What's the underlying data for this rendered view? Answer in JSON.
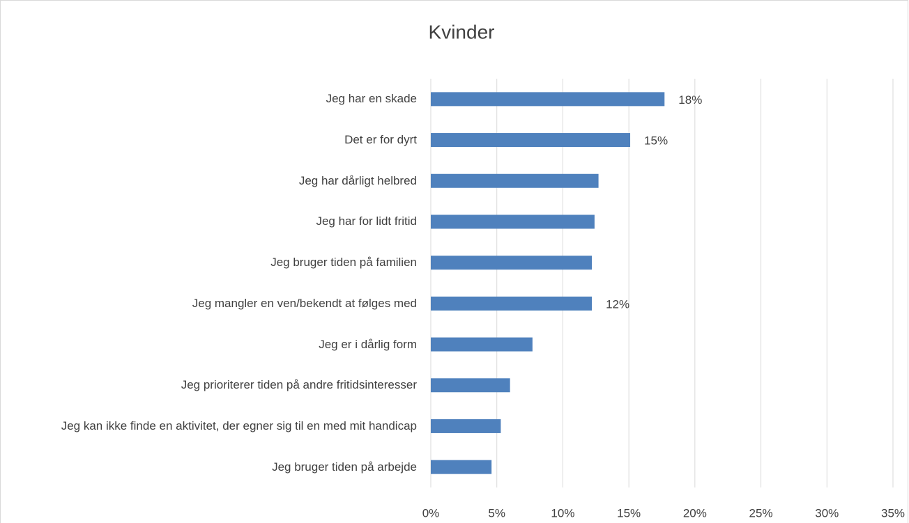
{
  "chart_data": {
    "type": "bar",
    "orientation": "horizontal",
    "title": "Kvinder",
    "categories": [
      "Jeg har en skade",
      "Det er for dyrt",
      "Jeg har dårligt helbred",
      "Jeg har for lidt fritid",
      "Jeg bruger tiden på familien",
      "Jeg mangler en ven/bekendt at følges med",
      "Jeg er i dårlig form",
      "Jeg prioriterer tiden på andre fritidsinteresser",
      "Jeg kan ikke finde en aktivitet, der egner sig til en med mit handicap",
      "Jeg bruger tiden på arbejde"
    ],
    "values": [
      17.7,
      15.1,
      12.7,
      12.4,
      12.2,
      12.2,
      7.7,
      6.0,
      5.3,
      4.6
    ],
    "value_labels": [
      "18%",
      "15%",
      null,
      null,
      null,
      "12%",
      null,
      null,
      null,
      null
    ],
    "color": "#4f81bd",
    "xlim": [
      0,
      35
    ],
    "xticks": [
      {
        "value": 0,
        "label": "0%"
      },
      {
        "value": 5,
        "label": "5%"
      },
      {
        "value": 10,
        "label": "10%"
      },
      {
        "value": 15,
        "label": "15%"
      },
      {
        "value": 20,
        "label": "20%"
      },
      {
        "value": 25,
        "label": "25%"
      },
      {
        "value": 30,
        "label": "30%"
      },
      {
        "value": 35,
        "label": "35%"
      }
    ],
    "grid": true
  }
}
